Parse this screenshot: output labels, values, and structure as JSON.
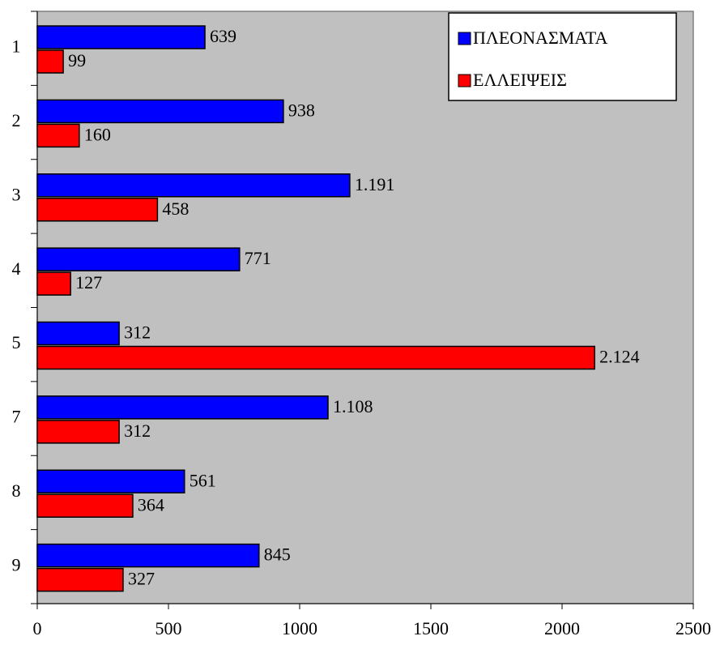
{
  "chart_data": {
    "type": "hbar",
    "categories": [
      "1",
      "2",
      "3",
      "4",
      "5",
      "7",
      "8",
      "9"
    ],
    "series": [
      {
        "name": "ΠΛΕΟΝΑΣΜΑΤΑ",
        "color": "#0000ff",
        "values": [
          639,
          938,
          1191,
          771,
          312,
          1108,
          561,
          845
        ],
        "value_labels": [
          "639",
          "938",
          "1.191",
          "771",
          "312",
          "1.108",
          "561",
          "845"
        ]
      },
      {
        "name": "ΕΛΛΕΙΨΕΙΣ",
        "color": "#ff0000",
        "values": [
          99,
          160,
          458,
          127,
          2124,
          312,
          364,
          327
        ],
        "value_labels": [
          "99",
          "160",
          "458",
          "127",
          "2.124",
          "312",
          "364",
          "327"
        ]
      }
    ],
    "xlim": [
      0,
      2500
    ],
    "xticks": [
      0,
      500,
      1000,
      1500,
      2000,
      2500
    ],
    "legend": "top-right",
    "plot_background": "#c0c0c0"
  }
}
